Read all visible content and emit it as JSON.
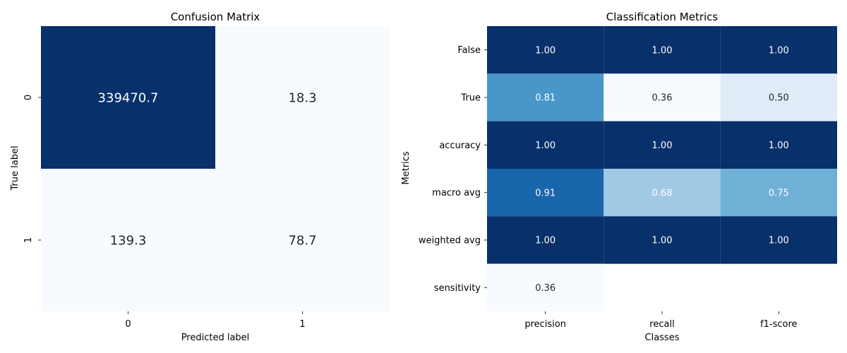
{
  "chart_data": [
    {
      "type": "heatmap",
      "title": "Confusion Matrix",
      "xlabel": "Predicted label",
      "ylabel": "True label",
      "x_categories": [
        "0",
        "1"
      ],
      "y_categories": [
        "0",
        "1"
      ],
      "values": [
        [
          339470.7,
          18.3
        ],
        [
          139.3,
          78.7
        ]
      ],
      "labels": [
        [
          "339470.7",
          "18.3"
        ],
        [
          "139.3",
          "78.7"
        ]
      ],
      "colormap": "Blues",
      "colorbar": false
    },
    {
      "type": "heatmap",
      "title": "Classification Metrics",
      "xlabel": "Classes",
      "ylabel": "Metrics",
      "x_categories": [
        "precision",
        "recall",
        "f1-score"
      ],
      "y_categories": [
        "False",
        "True",
        "accuracy",
        "macro avg",
        "weighted avg",
        "sensitivity"
      ],
      "values": [
        [
          1.0,
          1.0,
          1.0
        ],
        [
          0.81,
          0.36,
          0.5
        ],
        [
          1.0,
          1.0,
          1.0
        ],
        [
          0.91,
          0.68,
          0.75
        ],
        [
          1.0,
          1.0,
          1.0
        ],
        [
          0.36,
          null,
          null
        ]
      ],
      "labels": [
        [
          "1.00",
          "1.00",
          "1.00"
        ],
        [
          "0.81",
          "0.36",
          "0.50"
        ],
        [
          "1.00",
          "1.00",
          "1.00"
        ],
        [
          "0.91",
          "0.68",
          "0.75"
        ],
        [
          "1.00",
          "1.00",
          "1.00"
        ],
        [
          "0.36",
          "",
          ""
        ]
      ],
      "colormap": "Blues",
      "colorbar": false
    }
  ],
  "colors": {
    "c0": "#08306b",
    "c1": "#0d57a1",
    "c2": "#2f7fc1",
    "c3": "#4a98c9",
    "c4": "#6aaed6",
    "c5": "#cddff0",
    "c6": "#f7fbff"
  }
}
